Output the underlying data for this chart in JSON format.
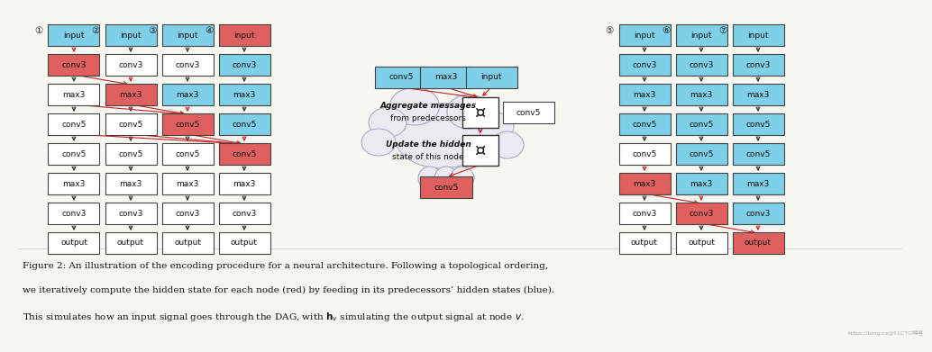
{
  "bg_color": "#f7f7f2",
  "blue_color": "#7ecfe8",
  "red_color": "#e06060",
  "white_color": "#ffffff",
  "border_color": "#444444",
  "node_labels": [
    "input",
    "conv3",
    "max3",
    "conv5",
    "conv5",
    "max3",
    "conv3",
    "output"
  ],
  "col_numbers": [
    "①",
    "②",
    "③",
    "④",
    "⑤",
    "⑥",
    "⑦"
  ],
  "col1_colors": [
    "blue",
    "red",
    "white",
    "white",
    "white",
    "white",
    "white",
    "white"
  ],
  "col2_colors": [
    "blue",
    "white",
    "red",
    "white",
    "white",
    "white",
    "white",
    "white"
  ],
  "col3_colors": [
    "blue",
    "white",
    "blue",
    "red",
    "white",
    "white",
    "white",
    "white"
  ],
  "col4_colors": [
    "red",
    "blue",
    "blue",
    "blue",
    "red",
    "white",
    "white",
    "white"
  ],
  "col5_colors": [
    "blue",
    "blue",
    "blue",
    "blue",
    "white",
    "red",
    "white",
    "white"
  ],
  "col6_colors": [
    "blue",
    "blue",
    "blue",
    "blue",
    "blue",
    "blue",
    "red",
    "white"
  ],
  "col7_colors": [
    "blue",
    "blue",
    "blue",
    "blue",
    "blue",
    "blue",
    "blue",
    "red"
  ],
  "cloud_color": "#eaeaf0",
  "cloud_edge": "#aaaacc",
  "caption_line1": "Figure 2: An illustration of the encoding procedure for a neural architecture. Following a topological ordering,",
  "caption_line2": "we iteratively compute the hidden state for each node (red) by feeding in its predecessors’ hidden states (blue).",
  "caption_line3": "This simulates how an input signal goes through the DAG, with $\\mathbf{h}_v$ simulating the output signal at node $v$.",
  "watermark": "https://blog.cs☉@51CTO博客"
}
